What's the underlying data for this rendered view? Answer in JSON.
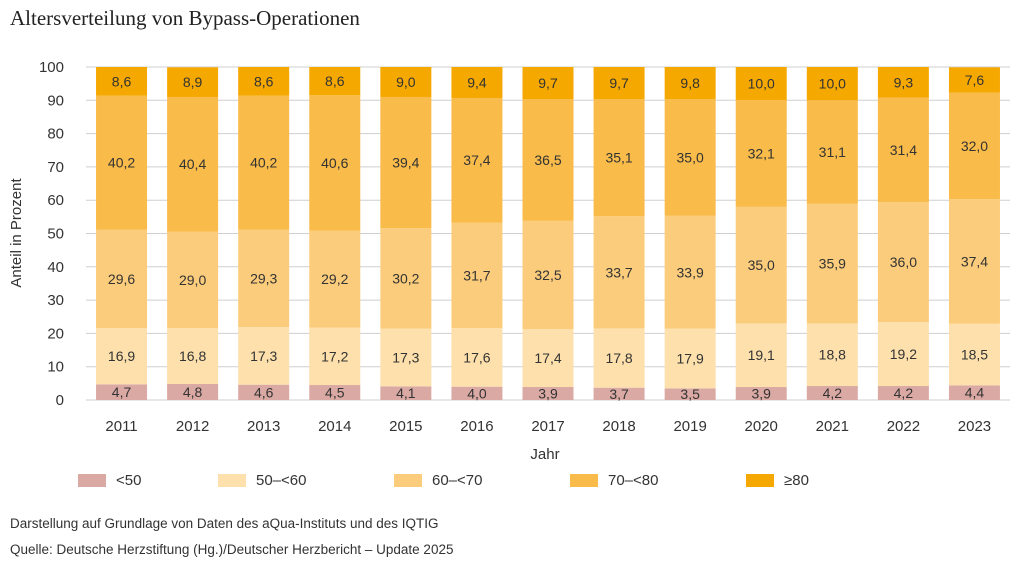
{
  "chart_data": {
    "type": "bar",
    "stacked": true,
    "title": "Altersverteilung von Bypass-Operationen",
    "xlabel": "Jahr",
    "ylabel": "Anteil in Prozent",
    "ylim": [
      0,
      100
    ],
    "yticks": [
      "0",
      "10",
      "20",
      "30",
      "40",
      "50",
      "60",
      "70",
      "80",
      "90",
      "100"
    ],
    "grid": true,
    "legend_position": "bottom",
    "categories": [
      "2011",
      "2012",
      "2013",
      "2014",
      "2015",
      "2016",
      "2017",
      "2018",
      "2019",
      "2020",
      "2021",
      "2022",
      "2023"
    ],
    "series": [
      {
        "name": "<50",
        "color": "#dba9a3",
        "values": [
          4.7,
          4.8,
          4.6,
          4.5,
          4.1,
          4.0,
          3.9,
          3.7,
          3.5,
          3.9,
          4.2,
          4.2,
          4.4
        ],
        "labels": [
          "4,7",
          "4,8",
          "4,6",
          "4,5",
          "4,1",
          "4,0",
          "3,9",
          "3,7",
          "3,5",
          "3,9",
          "4,2",
          "4,2",
          "4,4"
        ]
      },
      {
        "name": "50–<60",
        "color": "#fde0ac",
        "values": [
          16.9,
          16.8,
          17.3,
          17.2,
          17.3,
          17.6,
          17.4,
          17.8,
          17.9,
          19.1,
          18.8,
          19.2,
          18.5
        ],
        "labels": [
          "16,9",
          "16,8",
          "17,3",
          "17,2",
          "17,3",
          "17,6",
          "17,4",
          "17,8",
          "17,9",
          "19,1",
          "18,8",
          "19,2",
          "18,5"
        ]
      },
      {
        "name": "60–<70",
        "color": "#fbcc7b",
        "values": [
          29.6,
          29.0,
          29.3,
          29.2,
          30.2,
          31.7,
          32.5,
          33.7,
          33.9,
          35.0,
          35.9,
          36.0,
          37.4
        ],
        "labels": [
          "29,6",
          "29,0",
          "29,3",
          "29,2",
          "30,2",
          "31,7",
          "32,5",
          "33,7",
          "33,9",
          "35,0",
          "35,9",
          "36,0",
          "37,4"
        ]
      },
      {
        "name": "70–<80",
        "color": "#f9bb4a",
        "values": [
          40.2,
          40.4,
          40.2,
          40.6,
          39.4,
          37.4,
          36.5,
          35.1,
          35.0,
          32.1,
          31.1,
          31.4,
          32.0
        ],
        "labels": [
          "40,2",
          "40,4",
          "40,2",
          "40,6",
          "39,4",
          "37,4",
          "36,5",
          "35,1",
          "35,0",
          "32,1",
          "31,1",
          "31,4",
          "32,0"
        ]
      },
      {
        "name": "≥80",
        "color": "#f5a800",
        "values": [
          8.6,
          8.9,
          8.6,
          8.6,
          9.0,
          9.4,
          9.7,
          9.7,
          9.8,
          10.0,
          10.0,
          9.3,
          7.6
        ],
        "labels": [
          "8,6",
          "8,9",
          "8,6",
          "8,6",
          "9,0",
          "9,4",
          "9,7",
          "9,7",
          "9,8",
          "10,0",
          "10,0",
          "9,3",
          "7,6"
        ]
      }
    ]
  },
  "footnotes": {
    "line1": "Darstellung auf Grundlage von Daten des aQua-Instituts und des IQTIG",
    "line2": "Quelle: Deutsche Herzstiftung (Hg.)/Deutscher Herzbericht – Update 2025"
  }
}
